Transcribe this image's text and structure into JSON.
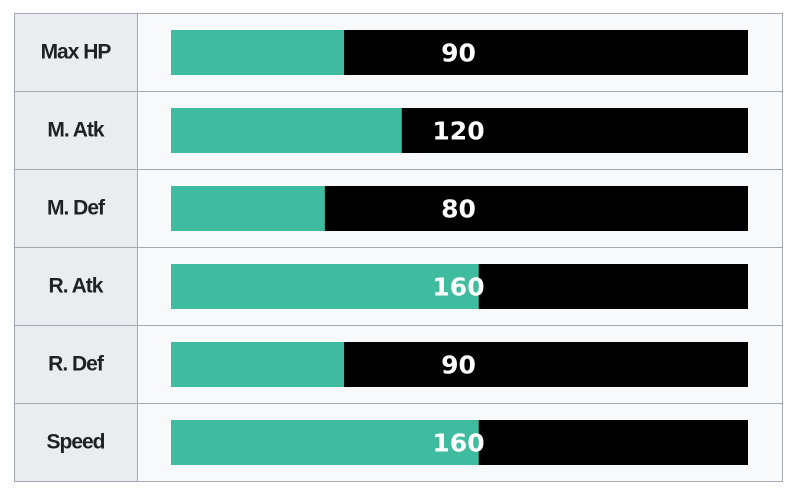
{
  "chart_data": {
    "type": "bar",
    "orientation": "horizontal",
    "categories": [
      "Max HP",
      "M. Atk",
      "M. Def",
      "R. Atk",
      "R. Def",
      "Speed"
    ],
    "values": [
      90,
      120,
      80,
      160,
      90,
      160
    ],
    "color": "#3fbb9f",
    "track_color": "#000000",
    "xlim": [
      0,
      300
    ]
  }
}
